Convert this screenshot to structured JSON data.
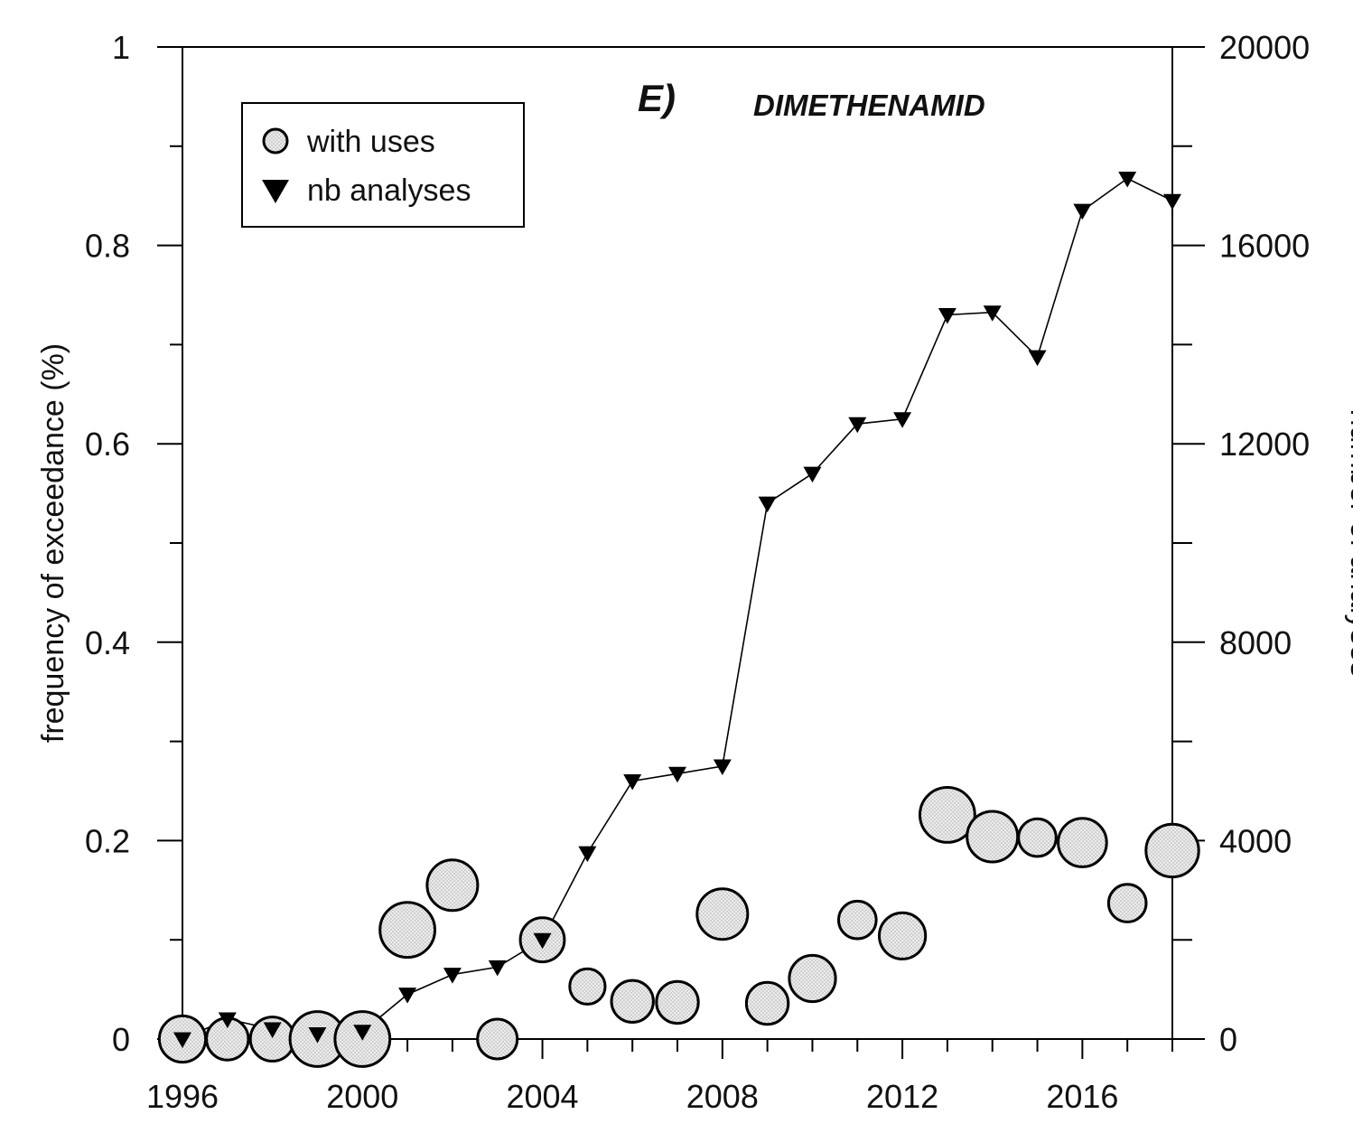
{
  "chart_data": {
    "type": "scatter",
    "panel_label": "E)",
    "title": "DIMETHENAMID",
    "ylabel": "frequency of exceedance (%)",
    "y2label": "number of analyses",
    "x_ticks": [
      "1996",
      "2000",
      "2004",
      "2008",
      "2012",
      "2016"
    ],
    "y_ticks": [
      "0",
      "0.2",
      "0.4",
      "0.6",
      "0.8",
      "1"
    ],
    "y2_ticks": [
      "0",
      "4000",
      "8000",
      "12000",
      "16000",
      "20000"
    ],
    "xlim": [
      1996,
      2018
    ],
    "ylim": [
      0,
      1
    ],
    "y2lim": [
      0,
      20000
    ],
    "grid": false,
    "legend_position": "top-left",
    "series": [
      {
        "name": "with uses",
        "kind": "bubble",
        "axis": "left",
        "x": [
          1996,
          1997,
          1998,
          1999,
          2000,
          2001,
          2002,
          2003,
          2004,
          2005,
          2006,
          2007,
          2008,
          2009,
          2010,
          2011,
          2012,
          2013,
          2014,
          2015,
          2016,
          2017,
          2018
        ],
        "y": [
          0,
          0,
          0,
          0,
          0,
          0.11,
          0.155,
          0,
          0.1,
          0.053,
          0.038,
          0.037,
          0.126,
          0.036,
          0.061,
          0.12,
          0.104,
          0.226,
          0.204,
          0.203,
          0.198,
          0.137,
          0.19
        ],
        "relative_size": [
          0.65,
          0.55,
          0.6,
          0.85,
          0.85,
          0.85,
          0.75,
          0.5,
          0.6,
          0.4,
          0.55,
          0.55,
          0.75,
          0.55,
          0.65,
          0.45,
          0.65,
          0.85,
          0.75,
          0.45,
          0.7,
          0.45,
          0.8
        ],
        "color": "#e6e6e6"
      },
      {
        "name": "nb analyses",
        "kind": "line-triangle",
        "axis": "right",
        "x": [
          1996,
          1997,
          1998,
          1999,
          2000,
          2001,
          2002,
          2003,
          2004,
          2005,
          2006,
          2007,
          2008,
          2009,
          2010,
          2011,
          2012,
          2013,
          2014,
          2015,
          2016,
          2017,
          2018
        ],
        "y": [
          0,
          400,
          200,
          100,
          150,
          900,
          1300,
          1450,
          2000,
          3750,
          5200,
          5350,
          5500,
          10800,
          11400,
          12400,
          12500,
          14600,
          14650,
          13750,
          16700,
          17350,
          16900
        ],
        "color": "#000000"
      }
    ]
  }
}
